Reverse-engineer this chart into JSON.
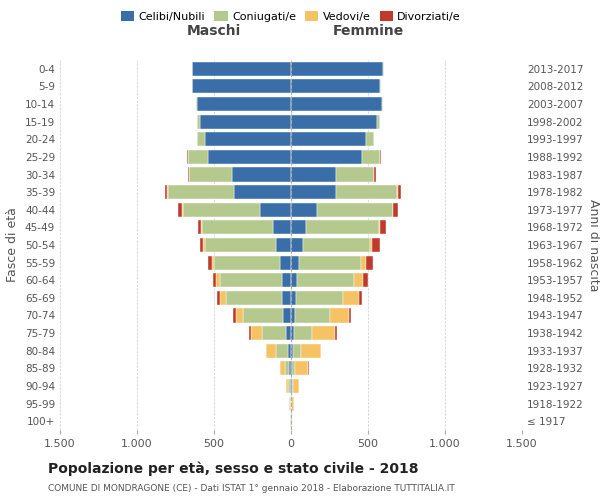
{
  "age_groups": [
    "100+",
    "95-99",
    "90-94",
    "85-89",
    "80-84",
    "75-79",
    "70-74",
    "65-69",
    "60-64",
    "55-59",
    "50-54",
    "45-49",
    "40-44",
    "35-39",
    "30-34",
    "25-29",
    "20-24",
    "15-19",
    "10-14",
    "5-9",
    "0-4"
  ],
  "birth_years": [
    "≤ 1917",
    "1918-1922",
    "1923-1927",
    "1928-1932",
    "1933-1937",
    "1938-1942",
    "1943-1947",
    "1948-1952",
    "1953-1957",
    "1958-1962",
    "1963-1967",
    "1968-1972",
    "1973-1977",
    "1978-1982",
    "1983-1987",
    "1988-1992",
    "1993-1997",
    "1998-2002",
    "2003-2007",
    "2008-2012",
    "2013-2017"
  ],
  "colors": {
    "celibi": "#3a6ea8",
    "coniugati": "#b5c98e",
    "vedovi": "#f5c264",
    "divorziati": "#c0392b"
  },
  "maschi": {
    "celibi": [
      2,
      3,
      5,
      10,
      20,
      30,
      50,
      60,
      60,
      70,
      100,
      120,
      200,
      370,
      380,
      540,
      560,
      590,
      610,
      640,
      640
    ],
    "coniugati": [
      2,
      5,
      15,
      30,
      80,
      160,
      260,
      360,
      400,
      430,
      460,
      460,
      500,
      430,
      280,
      130,
      50,
      20,
      10,
      5,
      5
    ],
    "vedovi": [
      1,
      3,
      10,
      30,
      60,
      70,
      50,
      40,
      25,
      15,
      10,
      5,
      5,
      3,
      2,
      1,
      1,
      0,
      0,
      0,
      0
    ],
    "divorziati": [
      0,
      0,
      1,
      2,
      5,
      10,
      15,
      20,
      20,
      25,
      20,
      20,
      30,
      15,
      10,
      5,
      2,
      1,
      0,
      0,
      0
    ]
  },
  "femmine": {
    "celibi": [
      2,
      3,
      5,
      8,
      12,
      18,
      25,
      30,
      40,
      55,
      80,
      100,
      170,
      290,
      290,
      460,
      490,
      560,
      590,
      580,
      600
    ],
    "coniugati": [
      0,
      2,
      5,
      15,
      50,
      120,
      230,
      310,
      370,
      400,
      430,
      470,
      490,
      400,
      250,
      120,
      50,
      20,
      10,
      5,
      5
    ],
    "vedovi": [
      5,
      15,
      40,
      90,
      130,
      150,
      120,
      100,
      60,
      35,
      15,
      8,
      5,
      3,
      2,
      1,
      0,
      0,
      0,
      0,
      0
    ],
    "divorziati": [
      0,
      0,
      1,
      2,
      5,
      8,
      12,
      18,
      30,
      40,
      50,
      40,
      30,
      20,
      10,
      5,
      2,
      1,
      0,
      0,
      0
    ]
  },
  "xlim": 1500,
  "title": "Popolazione per età, sesso e stato civile - 2018",
  "subtitle": "COMUNE DI MONDRAGONE (CE) - Dati ISTAT 1° gennaio 2018 - Elaborazione TUTTITALIA.IT",
  "ylabel_left": "Fasce di età",
  "ylabel_right": "Anni di nascita",
  "xlabel_ticks": [
    -1500,
    -1000,
    -500,
    0,
    500,
    1000,
    1500
  ],
  "xlabel_labels": [
    "1.500",
    "1.000",
    "500",
    "0",
    "500",
    "1.000",
    "1.500"
  ]
}
